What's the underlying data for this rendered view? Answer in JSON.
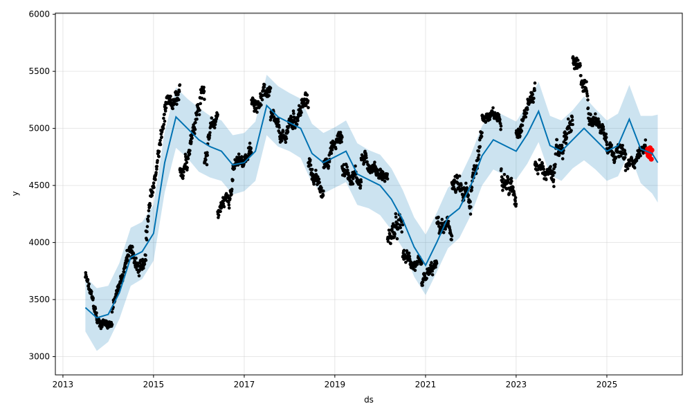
{
  "chart_data": {
    "type": "line",
    "title": "",
    "xlabel": "ds",
    "ylabel": "y",
    "xlim": [
      "2012-11-01",
      "2026-09-01"
    ],
    "ylim": [
      2840,
      6010
    ],
    "grid": true,
    "x_ticks": [
      "2013-01-01",
      "2015-01-01",
      "2017-01-01",
      "2019-01-01",
      "2021-01-01",
      "2023-01-01",
      "2025-01-01"
    ],
    "x_tick_labels": [
      "2013",
      "2015",
      "2017",
      "2019",
      "2021",
      "2023",
      "2025"
    ],
    "y_ticks": [
      3000,
      3500,
      4000,
      4500,
      5000,
      5500,
      6000
    ],
    "y_tick_labels": [
      "3000",
      "3500",
      "4000",
      "4500",
      "5000",
      "5500",
      "6000"
    ],
    "colors": {
      "forecast": "#0072B2",
      "interval": "#0072B2",
      "observed": "#000000",
      "recent": "#FF0000"
    },
    "forecast": {
      "x": [
        "2013-07-01",
        "2013-10-01",
        "2014-01-01",
        "2014-04-01",
        "2014-07-01",
        "2014-10-01",
        "2015-01-01",
        "2015-04-01",
        "2015-07-01",
        "2015-10-01",
        "2016-01-01",
        "2016-04-01",
        "2016-07-01",
        "2016-10-01",
        "2017-01-01",
        "2017-04-01",
        "2017-07-01",
        "2017-10-01",
        "2018-01-01",
        "2018-04-01",
        "2018-07-01",
        "2018-10-01",
        "2019-01-01",
        "2019-04-01",
        "2019-07-01",
        "2019-10-01",
        "2020-01-01",
        "2020-04-01",
        "2020-07-01",
        "2020-10-01",
        "2021-01-01",
        "2021-04-01",
        "2021-07-01",
        "2021-10-01",
        "2022-01-01",
        "2022-04-01",
        "2022-07-01",
        "2022-10-01",
        "2023-01-01",
        "2023-04-01",
        "2023-07-01",
        "2023-10-01",
        "2024-01-01",
        "2024-04-01",
        "2024-07-01",
        "2024-10-01",
        "2025-01-01",
        "2025-04-01",
        "2025-07-01",
        "2025-10-01",
        "2026-01-01",
        "2026-02-15"
      ],
      "y": [
        3430,
        3340,
        3370,
        3560,
        3870,
        3920,
        4080,
        4700,
        5100,
        5000,
        4900,
        4840,
        4800,
        4680,
        4700,
        4800,
        5200,
        5100,
        5050,
        5000,
        4780,
        4700,
        4750,
        4800,
        4600,
        4550,
        4500,
        4380,
        4200,
        3960,
        3800,
        4000,
        4220,
        4300,
        4500,
        4760,
        4900,
        4850,
        4800,
        4950,
        5150,
        4850,
        4800,
        4900,
        5000,
        4900,
        4800,
        4850,
        5080,
        4820,
        4780,
        4700
      ],
      "lower": [
        3220,
        3050,
        3130,
        3330,
        3620,
        3680,
        3840,
        4440,
        4830,
        4740,
        4620,
        4570,
        4540,
        4420,
        4450,
        4540,
        4940,
        4840,
        4800,
        4740,
        4520,
        4430,
        4480,
        4530,
        4330,
        4300,
        4240,
        4110,
        3950,
        3700,
        3540,
        3740,
        3950,
        4040,
        4240,
        4500,
        4640,
        4590,
        4550,
        4690,
        4880,
        4590,
        4540,
        4650,
        4720,
        4640,
        4540,
        4580,
        4790,
        4520,
        4430,
        4350
      ],
      "upper": [
        3700,
        3600,
        3620,
        3820,
        4130,
        4180,
        4330,
        4970,
        5360,
        5260,
        5180,
        5110,
        5070,
        4940,
        4960,
        5060,
        5470,
        5370,
        5310,
        5260,
        5040,
        4960,
        5010,
        5070,
        4870,
        4810,
        4770,
        4650,
        4460,
        4220,
        4070,
        4260,
        4480,
        4560,
        4770,
        5020,
        5160,
        5110,
        5060,
        5210,
        5410,
        5110,
        5070,
        5160,
        5280,
        5170,
        5070,
        5130,
        5380,
        5110,
        5110,
        5120
      ]
    },
    "observed_segments": [
      {
        "start": "2013-07-01",
        "end": "2013-10-01",
        "y_start": 3700,
        "y_end": 3350,
        "jitter": 120
      },
      {
        "start": "2013-10-01",
        "end": "2014-02-01",
        "y_start": 3300,
        "y_end": 3300,
        "jitter": 90
      },
      {
        "start": "2014-02-01",
        "end": "2014-06-01",
        "y_start": 3400,
        "y_end": 3850,
        "jitter": 110
      },
      {
        "start": "2014-06-01",
        "end": "2014-11-01",
        "y_start": 3900,
        "y_end": 3800,
        "jitter": 150
      },
      {
        "start": "2014-11-01",
        "end": "2015-04-01",
        "y_start": 4100,
        "y_end": 5100,
        "jitter": 170
      },
      {
        "start": "2015-04-01",
        "end": "2015-08-01",
        "y_start": 5150,
        "y_end": 5250,
        "jitter": 160
      },
      {
        "start": "2015-08-01",
        "end": "2015-11-01",
        "y_start": 4600,
        "y_end": 4900,
        "jitter": 180
      },
      {
        "start": "2015-11-01",
        "end": "2016-02-15",
        "y_start": 5000,
        "y_end": 5350,
        "jitter": 220
      },
      {
        "start": "2016-02-15",
        "end": "2016-06-01",
        "y_start": 4750,
        "y_end": 5150,
        "jitter": 170
      },
      {
        "start": "2016-06-01",
        "end": "2016-10-01",
        "y_start": 4250,
        "y_end": 4500,
        "jitter": 150
      },
      {
        "start": "2016-10-01",
        "end": "2017-03-01",
        "y_start": 4650,
        "y_end": 4800,
        "jitter": 130
      },
      {
        "start": "2017-03-01",
        "end": "2017-08-01",
        "y_start": 5200,
        "y_end": 5350,
        "jitter": 130
      },
      {
        "start": "2017-08-01",
        "end": "2017-12-01",
        "y_start": 5100,
        "y_end": 4850,
        "jitter": 140
      },
      {
        "start": "2017-12-01",
        "end": "2018-06-01",
        "y_start": 5000,
        "y_end": 5250,
        "jitter": 170
      },
      {
        "start": "2018-06-01",
        "end": "2018-10-01",
        "y_start": 4700,
        "y_end": 4400,
        "jitter": 140
      },
      {
        "start": "2018-10-01",
        "end": "2019-03-01",
        "y_start": 4700,
        "y_end": 4950,
        "jitter": 150
      },
      {
        "start": "2019-03-01",
        "end": "2019-08-01",
        "y_start": 4650,
        "y_end": 4550,
        "jitter": 160
      },
      {
        "start": "2019-08-01",
        "end": "2020-03-01",
        "y_start": 4750,
        "y_end": 4550,
        "jitter": 120
      },
      {
        "start": "2020-03-01",
        "end": "2020-07-01",
        "y_start": 4050,
        "y_end": 4150,
        "jitter": 200
      },
      {
        "start": "2020-07-01",
        "end": "2020-12-01",
        "y_start": 3900,
        "y_end": 3750,
        "jitter": 120
      },
      {
        "start": "2020-12-01",
        "end": "2021-04-01",
        "y_start": 3650,
        "y_end": 3800,
        "jitter": 120
      },
      {
        "start": "2021-04-01",
        "end": "2021-08-01",
        "y_start": 4150,
        "y_end": 4100,
        "jitter": 150
      },
      {
        "start": "2021-08-01",
        "end": "2022-01-01",
        "y_start": 4500,
        "y_end": 4350,
        "jitter": 220
      },
      {
        "start": "2022-01-01",
        "end": "2022-04-01",
        "y_start": 4500,
        "y_end": 4950,
        "jitter": 170
      },
      {
        "start": "2022-04-01",
        "end": "2022-09-01",
        "y_start": 5100,
        "y_end": 5100,
        "jitter": 110
      },
      {
        "start": "2022-09-01",
        "end": "2023-01-01",
        "y_start": 4600,
        "y_end": 4400,
        "jitter": 180
      },
      {
        "start": "2023-01-01",
        "end": "2023-06-01",
        "y_start": 4950,
        "y_end": 5350,
        "jitter": 150
      },
      {
        "start": "2023-06-01",
        "end": "2023-11-01",
        "y_start": 4700,
        "y_end": 4550,
        "jitter": 130
      },
      {
        "start": "2023-11-01",
        "end": "2024-04-01",
        "y_start": 4700,
        "y_end": 5050,
        "jitter": 180
      },
      {
        "start": "2024-04-01",
        "end": "2024-08-01",
        "y_start": 5600,
        "y_end": 5300,
        "jitter": 180
      },
      {
        "start": "2024-08-01",
        "end": "2025-01-01",
        "y_start": 5150,
        "y_end": 4950,
        "jitter": 140
      },
      {
        "start": "2025-01-01",
        "end": "2025-06-01",
        "y_start": 4850,
        "y_end": 4750,
        "jitter": 130
      },
      {
        "start": "2025-06-01",
        "end": "2025-11-15",
        "y_start": 4650,
        "y_end": 4850,
        "jitter": 110
      }
    ],
    "recent_points": {
      "x": [
        "2025-11-20",
        "2025-11-25",
        "2025-11-30",
        "2025-12-05",
        "2025-12-10",
        "2025-12-15",
        "2025-12-20",
        "2025-12-25",
        "2025-12-30"
      ],
      "y": [
        4790,
        4820,
        4760,
        4800,
        4750,
        4830,
        4780,
        4730,
        4810
      ]
    }
  }
}
